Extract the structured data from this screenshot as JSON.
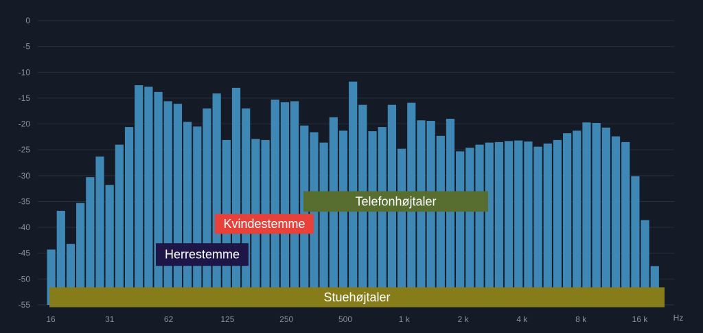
{
  "chart_data": {
    "type": "bar",
    "title": "",
    "xlabel": "",
    "ylabel": "",
    "x_unit": "Hz",
    "xscale": "log2",
    "xlim": [
      16,
      20000
    ],
    "ylim": [
      -55,
      0
    ],
    "grid": true,
    "ytick_labels": [
      "0",
      "-5",
      "-10",
      "-15",
      "-20",
      "-25",
      "-30",
      "-35",
      "-40",
      "-45",
      "-50",
      "-55"
    ],
    "ytick_values": [
      0,
      -5,
      -10,
      -15,
      -20,
      -25,
      -30,
      -35,
      -40,
      -45,
      -50,
      -55
    ],
    "xtick_labels": [
      "16",
      "31",
      "62",
      "125",
      "250",
      "500",
      "1 k",
      "2 k",
      "4 k",
      "8 k",
      "16 k"
    ],
    "xtick_values": [
      16,
      31,
      62,
      125,
      250,
      500,
      1000,
      2000,
      4000,
      8000,
      16000
    ],
    "values": [
      -44.3,
      -36.8,
      -43.2,
      -35.3,
      -30.3,
      -26.3,
      -31.8,
      -24.0,
      -20.6,
      -12.5,
      -12.8,
      -13.8,
      -15.6,
      -16.1,
      -19.6,
      -20.5,
      -17.0,
      -14.1,
      -23.1,
      -13.0,
      -17.0,
      -22.9,
      -23.1,
      -15.3,
      -15.8,
      -15.6,
      -20.3,
      -21.6,
      -23.6,
      -18.7,
      -21.3,
      -11.8,
      -16.3,
      -21.4,
      -20.6,
      -16.3,
      -24.8,
      -15.9,
      -19.3,
      -19.4,
      -22.3,
      -19.0,
      -25.3,
      -24.6,
      -24.0,
      -23.6,
      -23.5,
      -23.3,
      -23.2,
      -23.4,
      -24.4,
      -23.8,
      -23.1,
      -21.8,
      -21.3,
      -19.7,
      -19.8,
      -20.7,
      -22.4,
      -23.5,
      -30.1,
      -38.6,
      -47.5
    ],
    "bands": [
      {
        "label": "Telefonhøjtaler",
        "range_hz": [
          300,
          3400
        ],
        "level_db": -35,
        "color": "#576e30"
      },
      {
        "label": "Kvindestemme",
        "range_hz": [
          100,
          1000
        ],
        "level_db": -40,
        "color": "#e8413a"
      },
      {
        "label": "Herrestemme",
        "range_hz": [
          47,
          170
        ],
        "level_db": -45,
        "color": "#1d1646"
      },
      {
        "label": "Stuehøjtaler",
        "range_hz": [
          16,
          22000
        ],
        "level_db": -53,
        "color": "#877c1a"
      }
    ]
  }
}
